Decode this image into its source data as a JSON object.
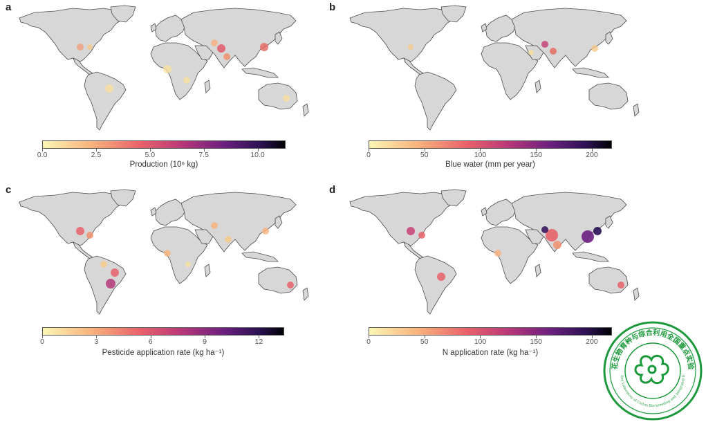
{
  "colors": {
    "land": "#d7d7d7",
    "coast": "#4a4a4a",
    "ocean": "#ffffff",
    "ramp_stops": [
      "#fcf6b4",
      "#f9b37c",
      "#e8636a",
      "#b63779",
      "#6c1f80",
      "#2a1152",
      "#000004"
    ],
    "stamp_green": "#1a9a3a"
  },
  "panels": [
    {
      "letter": "a",
      "colorbar": {
        "ticks": [
          "0.0",
          "2.5",
          "5.0",
          "7.5",
          "10.0"
        ],
        "tick_values": [
          0,
          2.5,
          5,
          7.5,
          10
        ],
        "max": 11.3,
        "label": "Production (10⁶ kg)"
      }
    },
    {
      "letter": "b",
      "colorbar": {
        "ticks": [
          "0",
          "50",
          "100",
          "150",
          "200"
        ],
        "tick_values": [
          0,
          50,
          100,
          150,
          200
        ],
        "max": 218,
        "label": "Blue water (mm per year)"
      }
    },
    {
      "letter": "c",
      "colorbar": {
        "ticks": [
          "0",
          "3",
          "6",
          "9",
          "12"
        ],
        "tick_values": [
          0,
          3,
          6,
          9,
          12
        ],
        "max": 13.4,
        "label": "Pesticide application rate (kg ha⁻¹)"
      }
    },
    {
      "letter": "d",
      "colorbar": {
        "ticks": [
          "0",
          "50",
          "100",
          "150",
          "200"
        ],
        "tick_values": [
          0,
          50,
          100,
          150,
          200
        ],
        "max": 218,
        "label": "N application rate (kg ha⁻¹)"
      }
    }
  ],
  "stamp": {
    "text_cn": "棉花生物育种与综合利用全国重点实验室",
    "text_en": "National Key Laboratory of Cotton Bio-breeding and Integrated Utilization"
  }
}
